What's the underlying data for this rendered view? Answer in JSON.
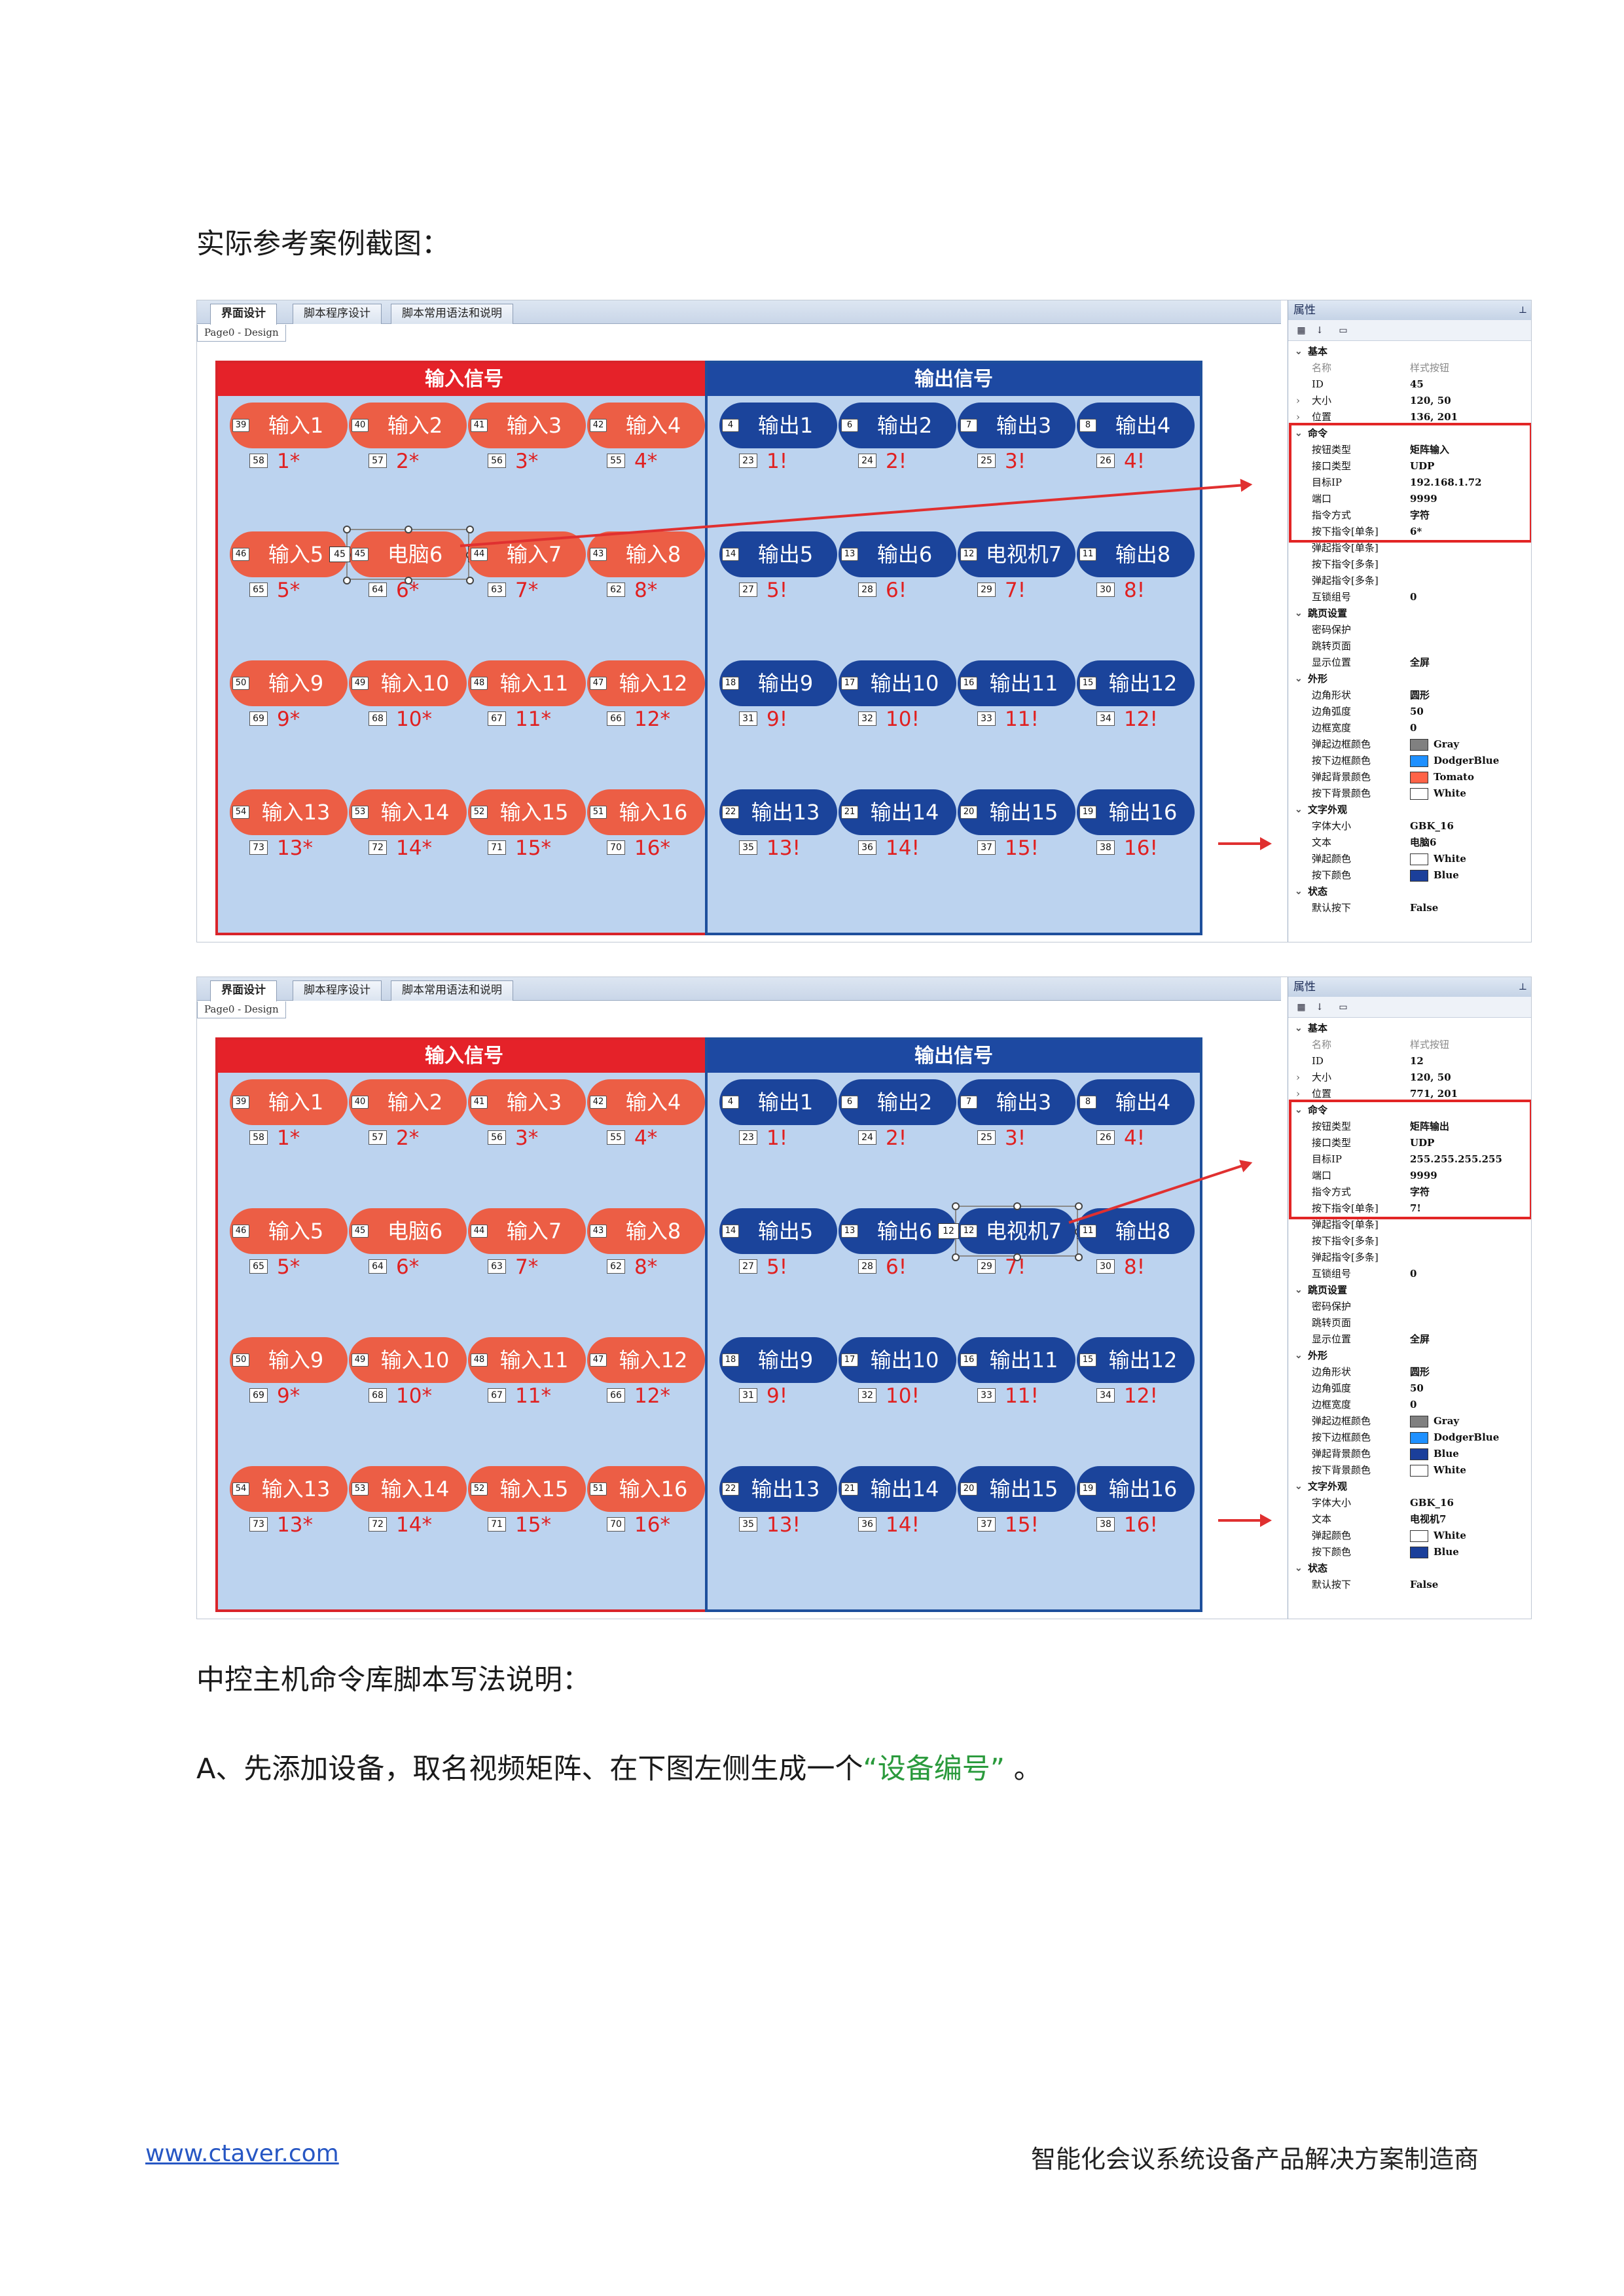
{
  "doc": {
    "heading1": "实际参考案例截图：",
    "heading2": "中控主机命令库脚本写法说明：",
    "step_a_prefix": "A、先添加设备，取名视频矩阵、在下图左侧生成一个",
    "step_a_quote": "“设备编号”",
    "step_a_suffix": "。",
    "footer_link": "www.ctaver.com",
    "footer_company": "智能化会议系统设备产品解决方案制造商",
    "colors": {
      "green": "#2a9a3c",
      "red": "#e52229",
      "blue": "#1d49a2",
      "tomato": "#ec5e45"
    }
  },
  "ui": {
    "tabs": [
      "界面设计",
      "脚本程序设计",
      "脚本常用语法和说明"
    ],
    "subtab": "Page0 - Design",
    "input_header": "输入信号",
    "output_header": "输出信号",
    "prop_title": "属性",
    "prop_pin": "ᵖ"
  },
  "inputs": [
    {
      "label": "输入1",
      "id": "39",
      "num": "1*",
      "nid": "58"
    },
    {
      "label": "输入2",
      "id": "40",
      "num": "2*",
      "nid": "57"
    },
    {
      "label": "输入3",
      "id": "41",
      "num": "3*",
      "nid": "56"
    },
    {
      "label": "输入4",
      "id": "42",
      "num": "4*",
      "nid": "55"
    },
    {
      "label": "输入5",
      "id": "46",
      "num": "5*",
      "nid": "65"
    },
    {
      "label": "电脑6",
      "id": "45",
      "num": "6*",
      "nid": "64"
    },
    {
      "label": "输入7",
      "id": "44",
      "num": "7*",
      "nid": "63"
    },
    {
      "label": "输入8",
      "id": "43",
      "num": "8*",
      "nid": "62"
    },
    {
      "label": "输入9",
      "id": "50",
      "num": "9*",
      "nid": "69"
    },
    {
      "label": "输入10",
      "id": "49",
      "num": "10*",
      "nid": "68"
    },
    {
      "label": "输入11",
      "id": "48",
      "num": "11*",
      "nid": "67"
    },
    {
      "label": "输入12",
      "id": "47",
      "num": "12*",
      "nid": "66"
    },
    {
      "label": "输入13",
      "id": "54",
      "num": "13*",
      "nid": "73"
    },
    {
      "label": "输入14",
      "id": "53",
      "num": "14*",
      "nid": "72"
    },
    {
      "label": "输入15",
      "id": "52",
      "num": "15*",
      "nid": "71"
    },
    {
      "label": "输入16",
      "id": "51",
      "num": "16*",
      "nid": "70"
    }
  ],
  "outputs": [
    {
      "label": "输出1",
      "id": "4",
      "num": "1!",
      "nid": "23"
    },
    {
      "label": "输出2",
      "id": "6",
      "num": "2!",
      "nid": "24"
    },
    {
      "label": "输出3",
      "id": "7",
      "num": "3!",
      "nid": "25"
    },
    {
      "label": "输出4",
      "id": "8",
      "num": "4!",
      "nid": "26"
    },
    {
      "label": "输出5",
      "id": "14",
      "num": "5!",
      "nid": "27"
    },
    {
      "label": "输出6",
      "id": "13",
      "num": "6!",
      "nid": "28"
    },
    {
      "label": "电视机7",
      "id": "12",
      "num": "7!",
      "nid": "29"
    },
    {
      "label": "输出8",
      "id": "11",
      "num": "8!",
      "nid": "30"
    },
    {
      "label": "输出9",
      "id": "18",
      "num": "9!",
      "nid": "31"
    },
    {
      "label": "输出10",
      "id": "17",
      "num": "10!",
      "nid": "32"
    },
    {
      "label": "输出11",
      "id": "16",
      "num": "11!",
      "nid": "33"
    },
    {
      "label": "输出12",
      "id": "15",
      "num": "12!",
      "nid": "34"
    },
    {
      "label": "输出13",
      "id": "22",
      "num": "13!",
      "nid": "35"
    },
    {
      "label": "输出14",
      "id": "21",
      "num": "14!",
      "nid": "36"
    },
    {
      "label": "输出15",
      "id": "20",
      "num": "15!",
      "nid": "37"
    },
    {
      "label": "输出16",
      "id": "19",
      "num": "16!",
      "nid": "38"
    }
  ],
  "screens": [
    {
      "name": "screenshot-1",
      "selected_side": "in",
      "selected_index": 5,
      "selected_tag": "45",
      "props": [
        {
          "k": "基本",
          "cat": true
        },
        {
          "k": "名称",
          "v": "样式按钮",
          "grey": true
        },
        {
          "k": "ID",
          "v": "45"
        },
        {
          "k": "大小",
          "v": "120, 50",
          "exp": "›"
        },
        {
          "k": "位置",
          "v": "136, 201",
          "exp": "›"
        },
        {
          "k": "命令",
          "cat": true
        },
        {
          "k": "按钮类型",
          "v": "矩阵输入"
        },
        {
          "k": "接口类型",
          "v": "UDP"
        },
        {
          "k": "目标IP",
          "v": "192.168.1.72"
        },
        {
          "k": "端口",
          "v": "9999"
        },
        {
          "k": "指令方式",
          "v": "字符"
        },
        {
          "k": "按下指令[单条]",
          "v": "6*"
        },
        {
          "k": "弹起指令[单条]",
          "v": ""
        },
        {
          "k": "按下指令[多条]",
          "v": ""
        },
        {
          "k": "弹起指令[多条]",
          "v": ""
        },
        {
          "k": "互锁组号",
          "v": "0"
        },
        {
          "k": "跳页设置",
          "cat": true
        },
        {
          "k": "密码保护",
          "v": ""
        },
        {
          "k": "跳转页面",
          "v": ""
        },
        {
          "k": "显示位置",
          "v": "全屏"
        },
        {
          "k": "外形",
          "cat": true
        },
        {
          "k": "边角形状",
          "v": "圆形"
        },
        {
          "k": "边角弧度",
          "v": "50"
        },
        {
          "k": "边框宽度",
          "v": "0"
        },
        {
          "k": "弹起边框颜色",
          "v": "Gray",
          "sw": "#808080"
        },
        {
          "k": "按下边框颜色",
          "v": "DodgerBlue",
          "sw": "#1e90ff"
        },
        {
          "k": "弹起背景颜色",
          "v": "Tomato",
          "sw": "#ff6347"
        },
        {
          "k": "按下背景颜色",
          "v": "White",
          "sw": "#ffffff"
        },
        {
          "k": "文字外观",
          "cat": true
        },
        {
          "k": "字体大小",
          "v": "GBK_16"
        },
        {
          "k": "文本",
          "v": "电脑6"
        },
        {
          "k": "弹起颜色",
          "v": "White",
          "sw": "#ffffff"
        },
        {
          "k": "按下颜色",
          "v": "Blue",
          "sw": "#1b3f9a"
        },
        {
          "k": "状态",
          "cat": true
        },
        {
          "k": "默认按下",
          "v": "False"
        }
      ]
    },
    {
      "name": "screenshot-2",
      "selected_side": "out",
      "selected_index": 6,
      "selected_tag": "12",
      "props": [
        {
          "k": "基本",
          "cat": true
        },
        {
          "k": "名称",
          "v": "样式按钮",
          "grey": true
        },
        {
          "k": "ID",
          "v": "12"
        },
        {
          "k": "大小",
          "v": "120, 50",
          "exp": "›"
        },
        {
          "k": "位置",
          "v": "771, 201",
          "exp": "›"
        },
        {
          "k": "命令",
          "cat": true
        },
        {
          "k": "按钮类型",
          "v": "矩阵输出"
        },
        {
          "k": "接口类型",
          "v": "UDP"
        },
        {
          "k": "目标IP",
          "v": "255.255.255.255"
        },
        {
          "k": "端口",
          "v": "9999"
        },
        {
          "k": "指令方式",
          "v": "字符"
        },
        {
          "k": "按下指令[单条]",
          "v": "7!"
        },
        {
          "k": "弹起指令[单条]",
          "v": ""
        },
        {
          "k": "按下指令[多条]",
          "v": ""
        },
        {
          "k": "弹起指令[多条]",
          "v": ""
        },
        {
          "k": "互锁组号",
          "v": "0"
        },
        {
          "k": "跳页设置",
          "cat": true
        },
        {
          "k": "密码保护",
          "v": ""
        },
        {
          "k": "跳转页面",
          "v": ""
        },
        {
          "k": "显示位置",
          "v": "全屏"
        },
        {
          "k": "外形",
          "cat": true
        },
        {
          "k": "边角形状",
          "v": "圆形"
        },
        {
          "k": "边角弧度",
          "v": "50"
        },
        {
          "k": "边框宽度",
          "v": "0"
        },
        {
          "k": "弹起边框颜色",
          "v": "Gray",
          "sw": "#808080"
        },
        {
          "k": "按下边框颜色",
          "v": "DodgerBlue",
          "sw": "#1e90ff"
        },
        {
          "k": "弹起背景颜色",
          "v": "Blue",
          "sw": "#1b3f9a"
        },
        {
          "k": "按下背景颜色",
          "v": "White",
          "sw": "#ffffff"
        },
        {
          "k": "文字外观",
          "cat": true
        },
        {
          "k": "字体大小",
          "v": "GBK_16"
        },
        {
          "k": "文本",
          "v": "电视机7"
        },
        {
          "k": "弹起颜色",
          "v": "White",
          "sw": "#ffffff"
        },
        {
          "k": "按下颜色",
          "v": "Blue",
          "sw": "#1b3f9a"
        },
        {
          "k": "状态",
          "cat": true
        },
        {
          "k": "默认按下",
          "v": "False"
        }
      ]
    }
  ]
}
